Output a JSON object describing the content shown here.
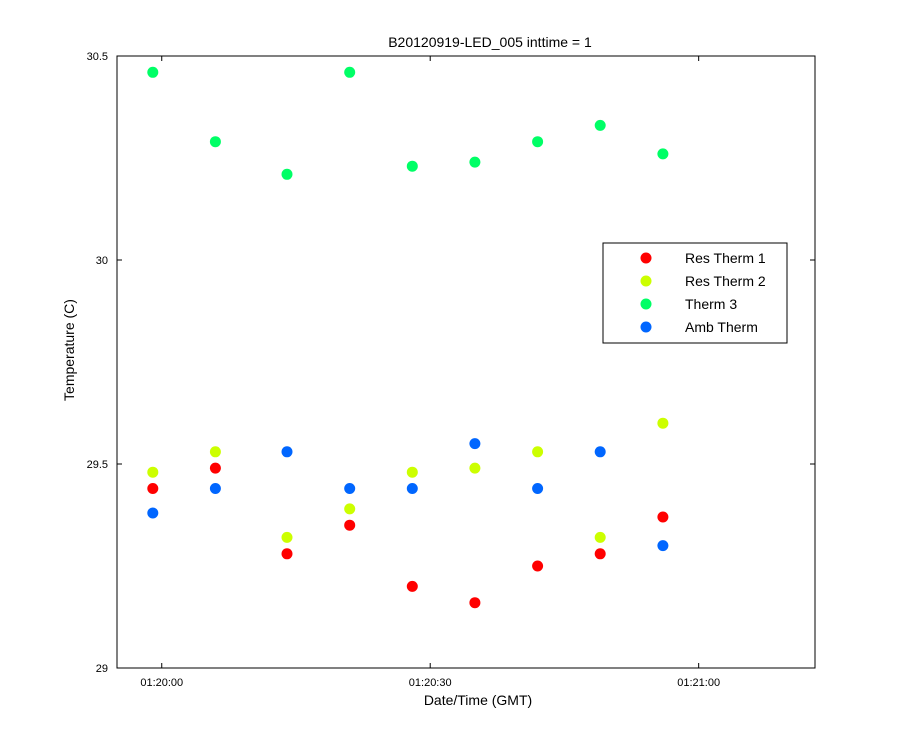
{
  "chart_data": {
    "type": "scatter",
    "title": "B20120919-LED_005 inttime = 1",
    "xlabel": "Date/Time (GMT)",
    "ylabel": "Temperature (C)",
    "xlim": [
      "01:19:55",
      "01:21:13"
    ],
    "ylim": [
      29,
      30.5
    ],
    "x_ticks": [
      "01:20:00",
      "01:20:30",
      "01:21:00"
    ],
    "y_ticks": [
      "29",
      "29.5",
      "30",
      "30.5"
    ],
    "grid": false,
    "legend_position": "right",
    "x": [
      "01:19:59",
      "01:20:06",
      "01:20:14",
      "01:20:21",
      "01:20:28",
      "01:20:35",
      "01:20:42",
      "01:20:49",
      "01:20:56"
    ],
    "series": [
      {
        "name": "Res Therm 1",
        "color": "#ff0000",
        "values": [
          29.44,
          29.49,
          29.28,
          29.35,
          29.2,
          29.16,
          29.25,
          29.28,
          29.37
        ]
      },
      {
        "name": "Res Therm 2",
        "color": "#ccff00",
        "values": [
          29.48,
          29.53,
          29.32,
          29.39,
          29.48,
          29.49,
          29.53,
          29.32,
          29.6
        ]
      },
      {
        "name": "Therm 3",
        "color": "#00ff66",
        "values": [
          30.46,
          30.29,
          30.21,
          30.46,
          30.23,
          30.24,
          30.29,
          30.33,
          30.26
        ]
      },
      {
        "name": "Amb Therm",
        "color": "#0066ff",
        "values": [
          29.38,
          29.44,
          29.53,
          29.44,
          29.44,
          29.55,
          29.44,
          29.53,
          29.3
        ]
      }
    ]
  }
}
